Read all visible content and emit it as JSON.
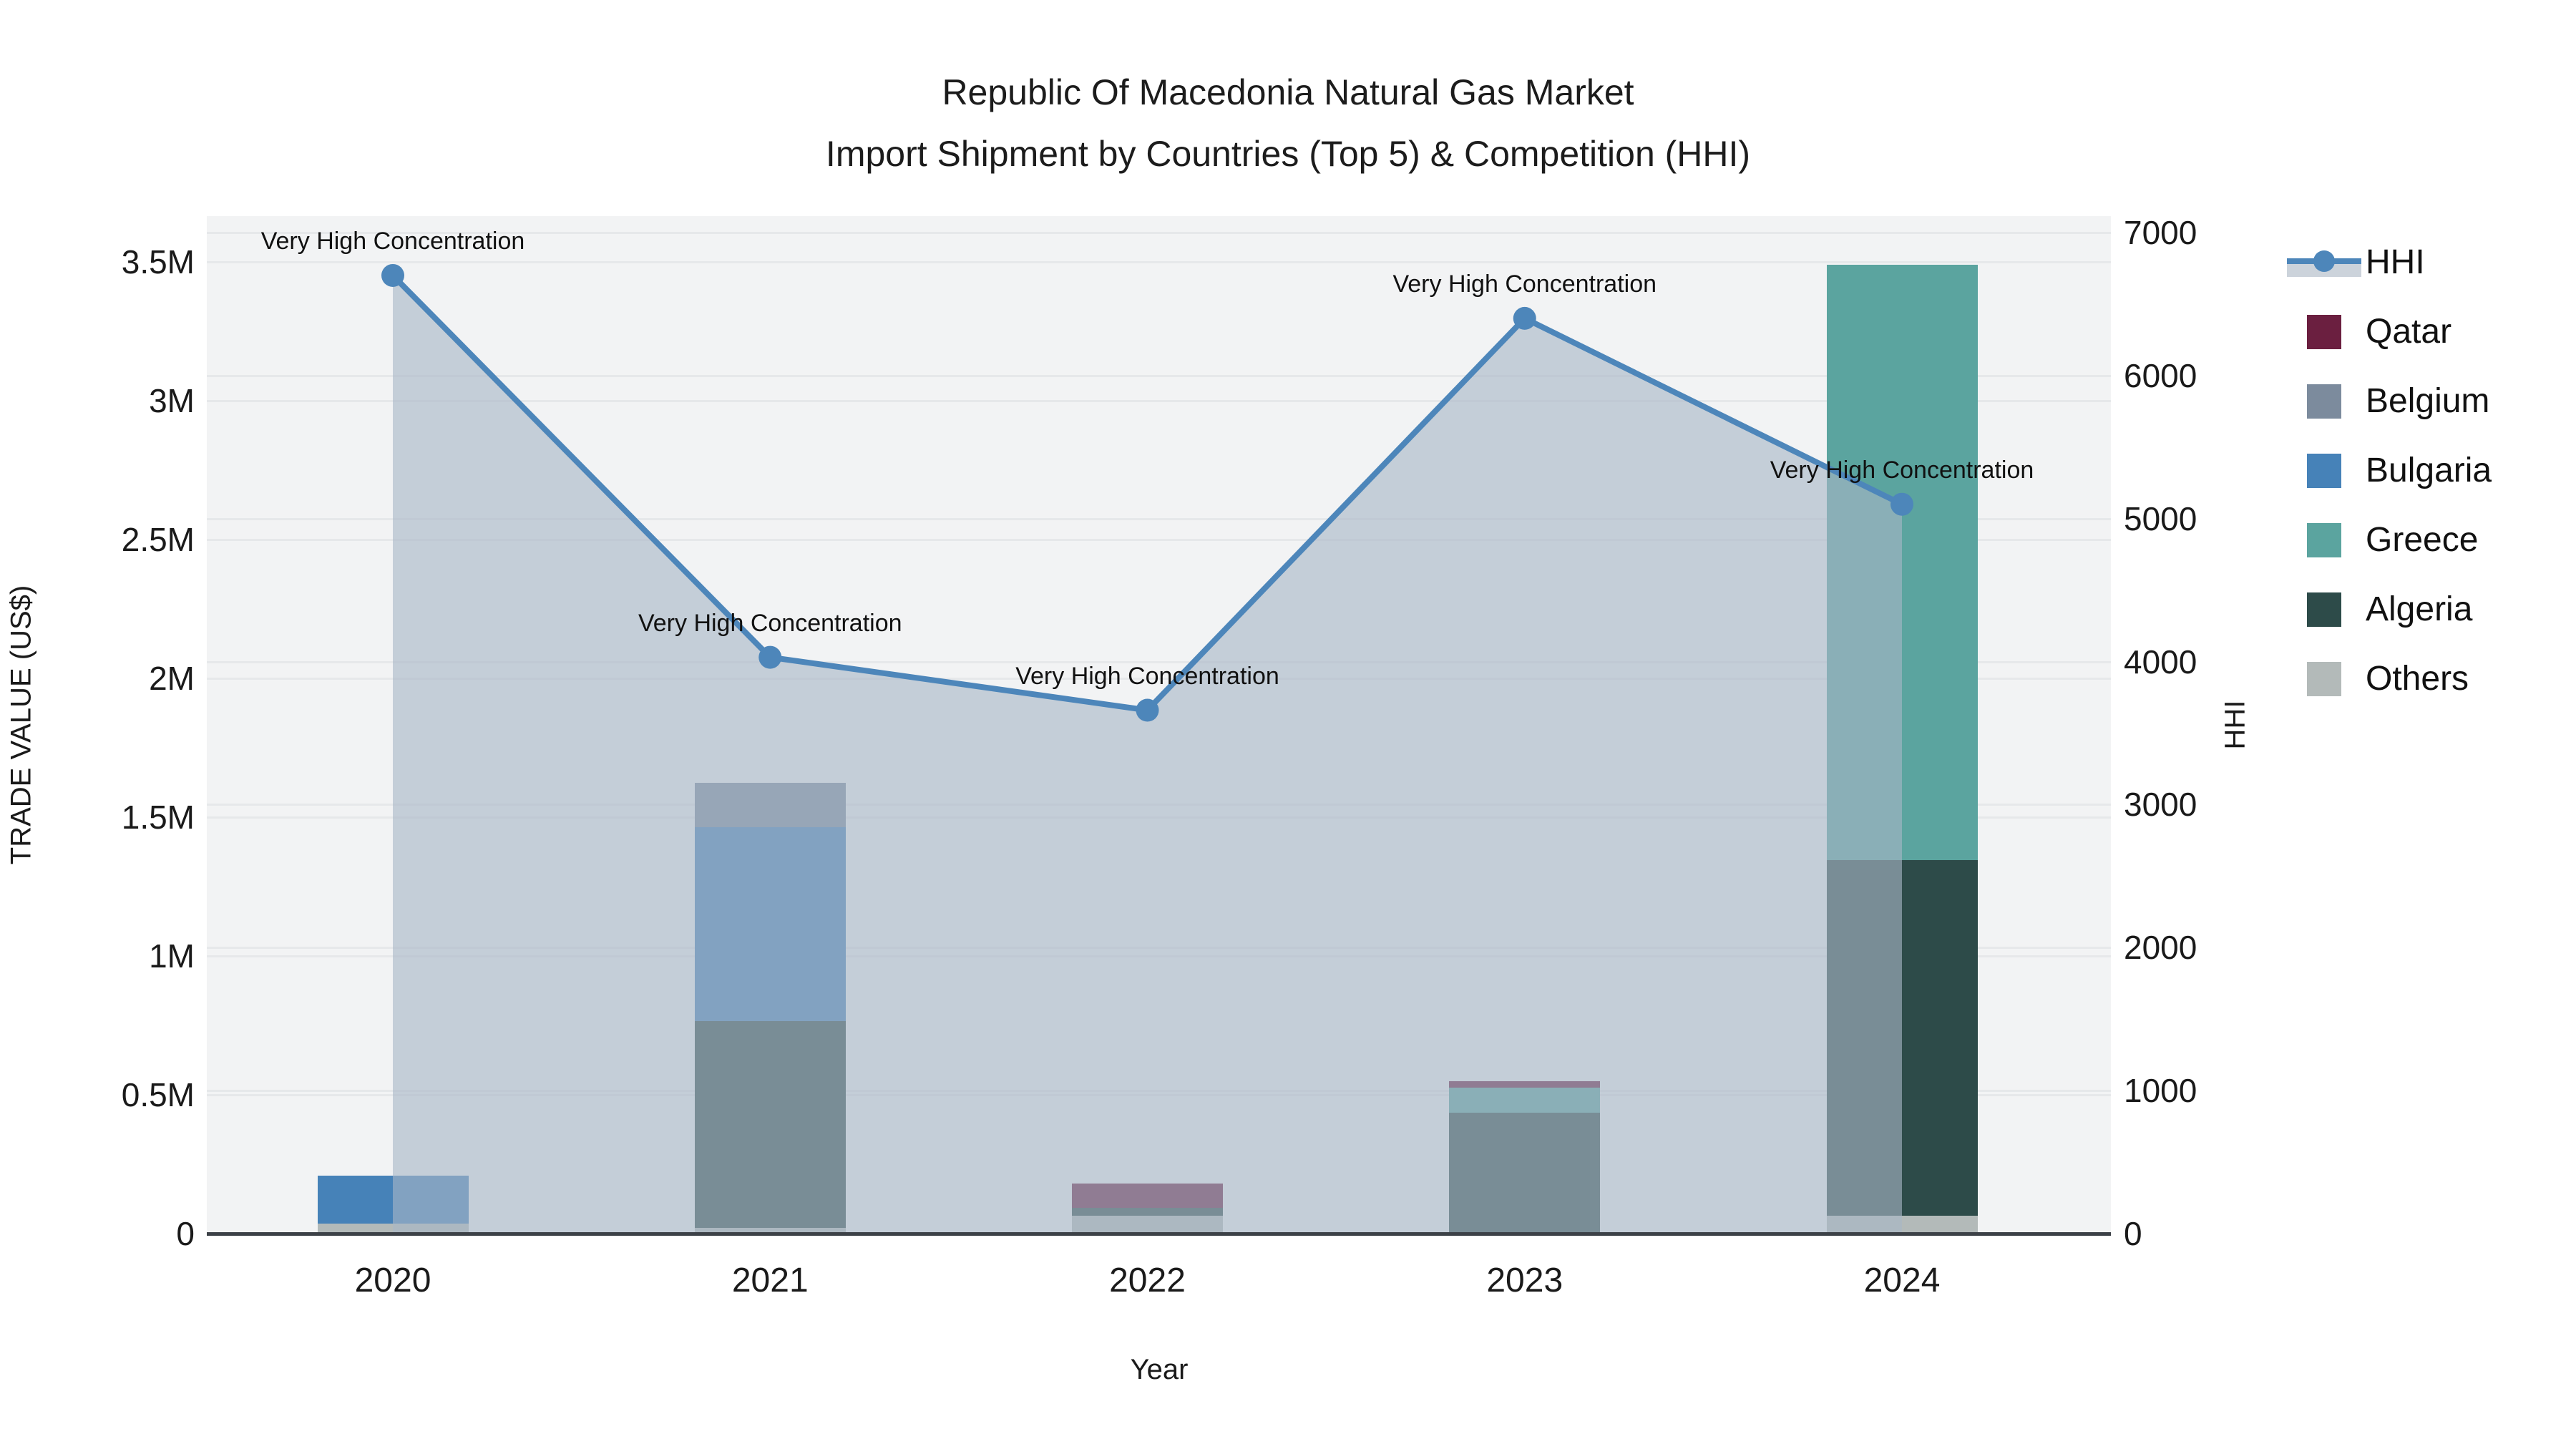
{
  "title": {
    "line1": "Republic Of Macedonia Natural Gas Market",
    "line2": "Import Shipment by Countries (Top 5) & Competition (HHI)"
  },
  "chart_data": {
    "type": "bar+line",
    "categories": [
      "2020",
      "2021",
      "2022",
      "2023",
      "2024"
    ],
    "bar_value_unit": "million US$",
    "series": [
      {
        "name": "Others",
        "color": "#b3bab9",
        "values": [
          0.035,
          0.02,
          0.065,
          0,
          0.065
        ]
      },
      {
        "name": "Algeria",
        "color": "#2d4b49",
        "values": [
          0,
          0.745,
          0.028,
          0.435,
          1.28
        ]
      },
      {
        "name": "Greece",
        "color": "#5ba49f",
        "values": [
          0,
          0,
          0,
          0.09,
          2.145
        ]
      },
      {
        "name": "Bulgaria",
        "color": "#4682b8",
        "values": [
          0.175,
          0.7,
          0,
          0,
          0
        ]
      },
      {
        "name": "Belgium",
        "color": "#7c8b9d",
        "values": [
          0,
          0.16,
          0,
          0,
          0
        ]
      },
      {
        "name": "Qatar",
        "color": "#6b1f40",
        "values": [
          0,
          0,
          0.087,
          0.023,
          0
        ]
      }
    ],
    "line": {
      "name": "HHI",
      "color": "#4d86ba",
      "area_fill": "rgba(168,182,199,0.62)",
      "values": [
        6700,
        4030,
        3660,
        6400,
        5100
      ]
    },
    "annotations": [
      {
        "category": "2020",
        "text": "Very High Concentration"
      },
      {
        "category": "2021",
        "text": "Very High Concentration"
      },
      {
        "category": "2022",
        "text": "Very High Concentration"
      },
      {
        "category": "2023",
        "text": "Very High Concentration"
      },
      {
        "category": "2024",
        "text": "Very High Concentration"
      }
    ],
    "left_axis": {
      "title": "TRADE VALUE (US$)",
      "tick_labels": [
        "0",
        "0.5M",
        "1M",
        "1.5M",
        "2M",
        "2.5M",
        "3M",
        "3.5M"
      ],
      "tick_values_millions": [
        0,
        0.5,
        1,
        1.5,
        2,
        2.5,
        3,
        3.5
      ],
      "range_millions": [
        0,
        3.67
      ]
    },
    "right_axis": {
      "title": "HHI",
      "tick_labels": [
        "0",
        "1000",
        "2000",
        "3000",
        "4000",
        "5000",
        "6000",
        "7000"
      ],
      "tick_values": [
        0,
        1000,
        2000,
        3000,
        4000,
        5000,
        6000,
        7000
      ],
      "range": [
        0,
        7115
      ]
    },
    "x_axis": {
      "title": "Year"
    },
    "legend": {
      "items": [
        "HHI",
        "Qatar",
        "Belgium",
        "Bulgaria",
        "Greece",
        "Algeria",
        "Others"
      ]
    },
    "layout_hints": {
      "grid": true,
      "legend_position": "right",
      "plot_background": "#f2f3f4"
    }
  }
}
